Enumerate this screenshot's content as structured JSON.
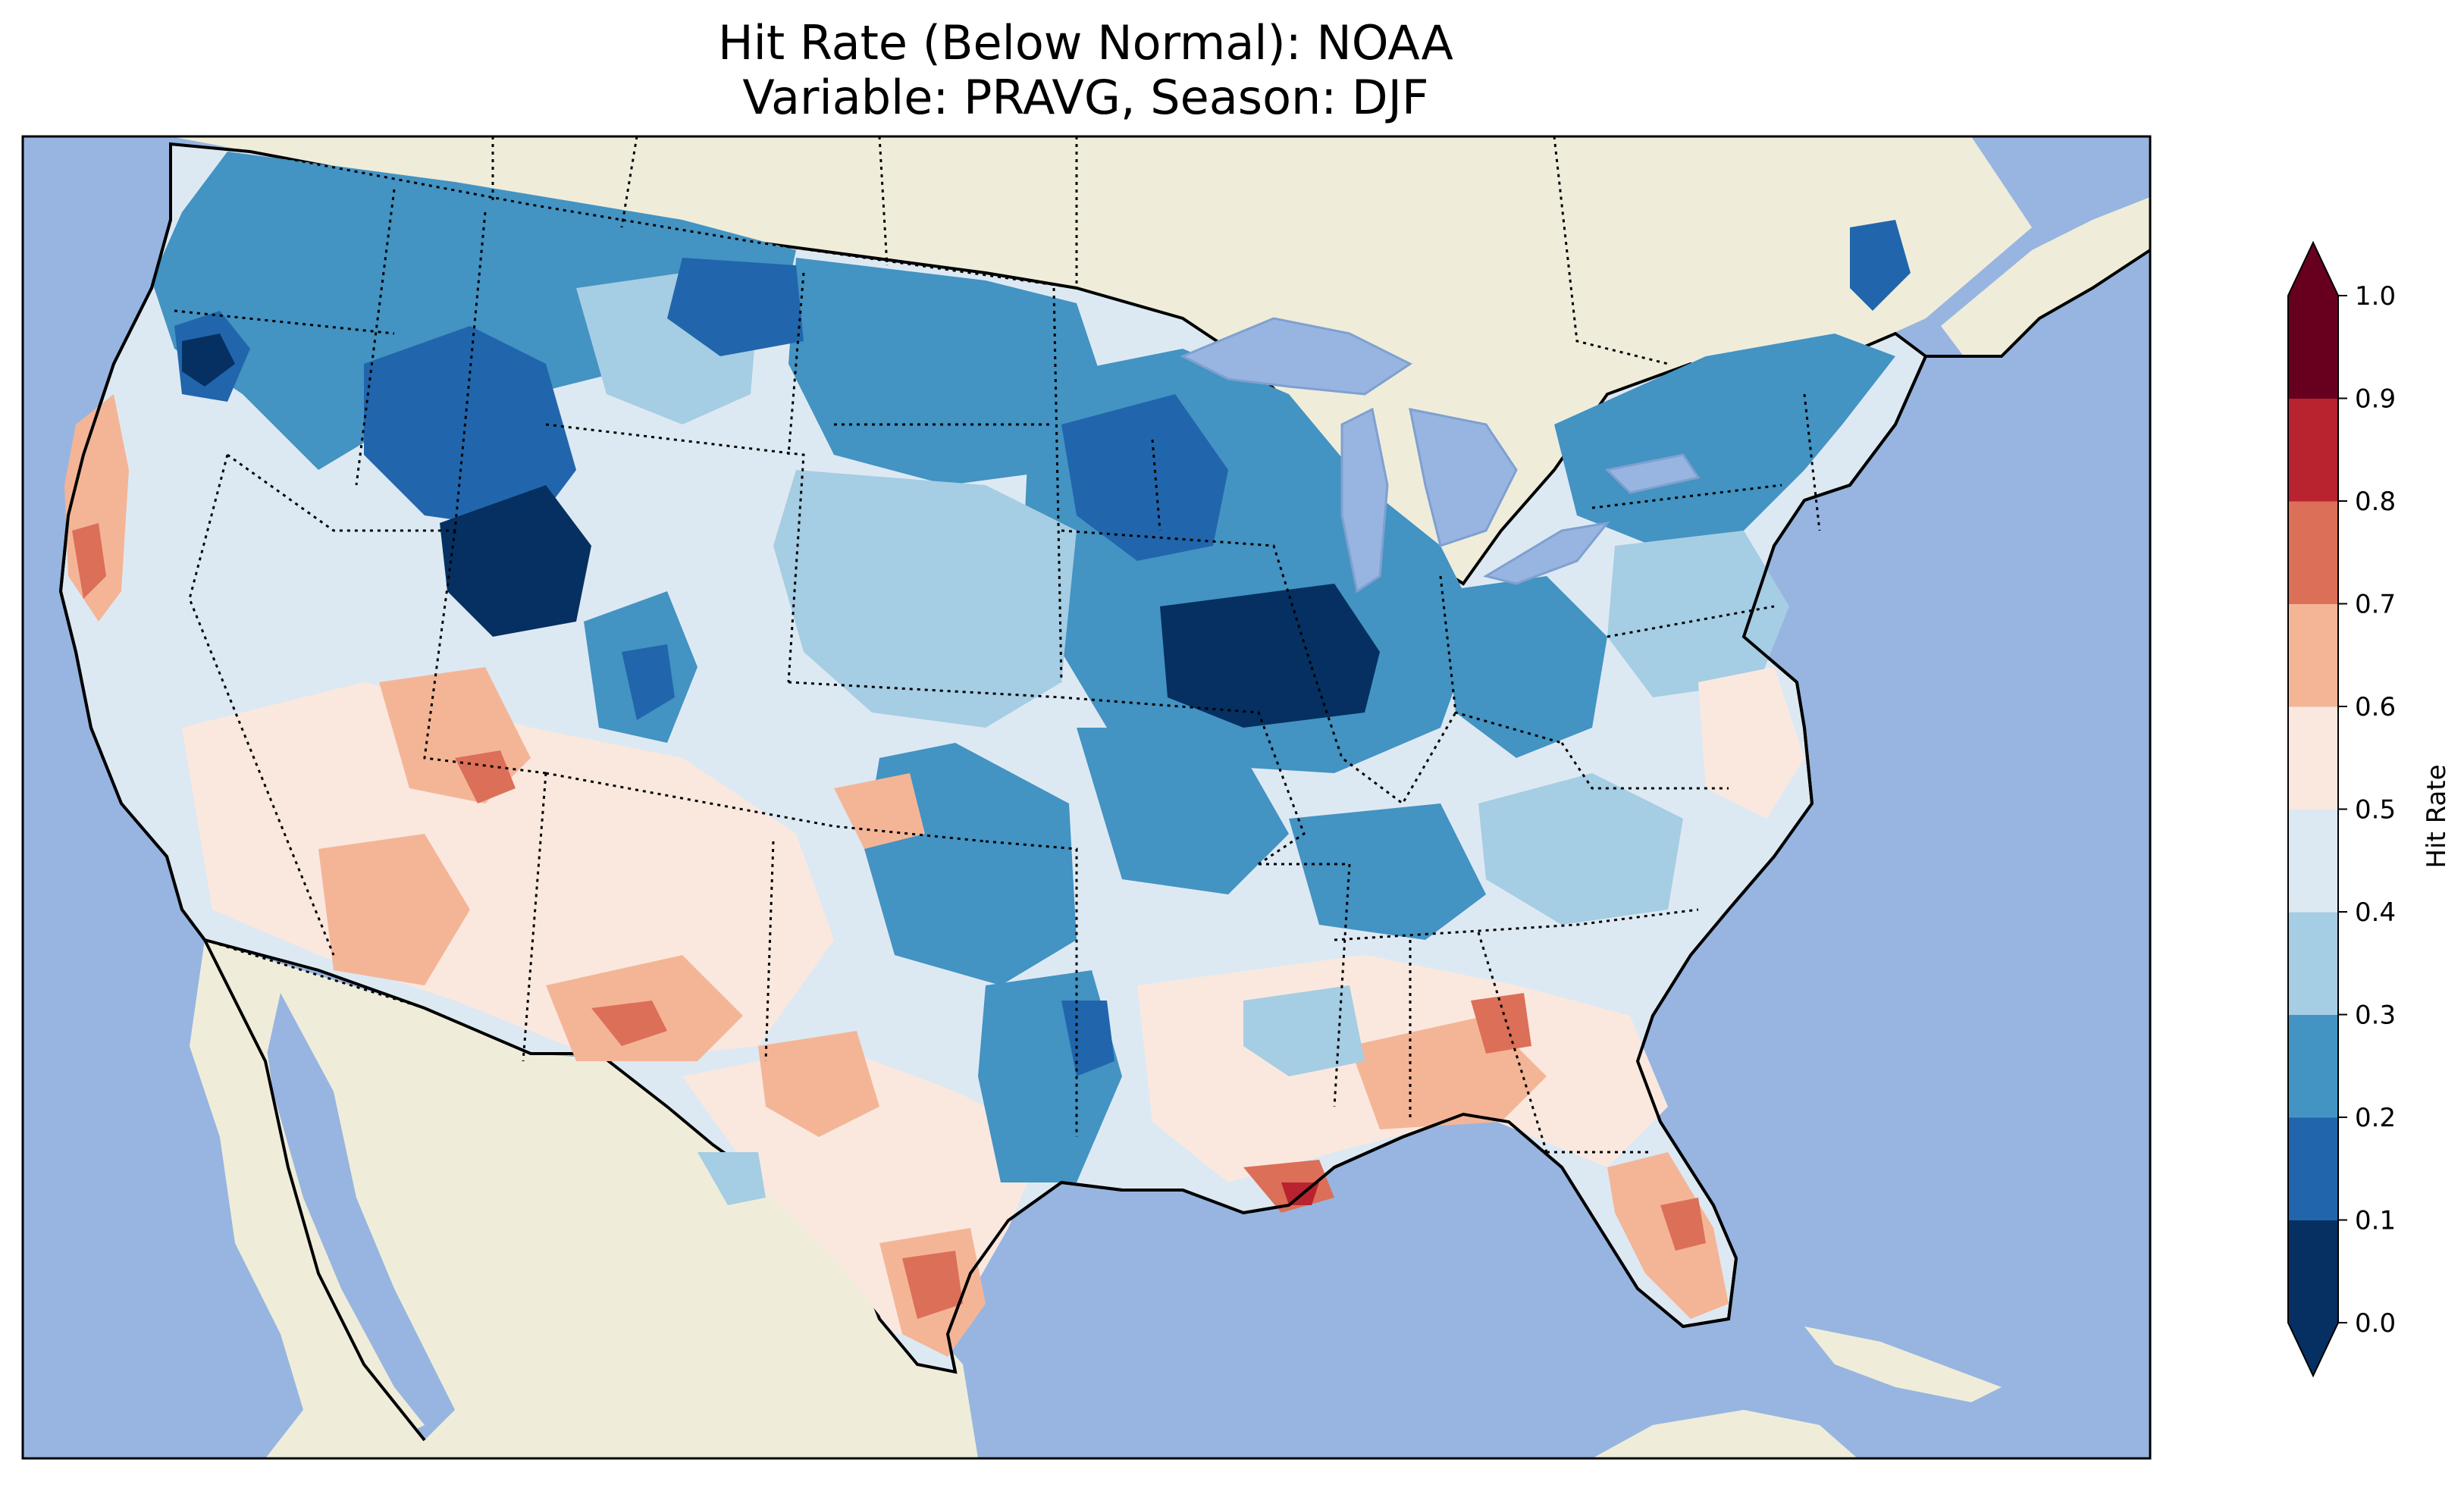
{
  "title": {
    "line1": "Hit Rate (Below Normal): NOAA",
    "line2": "Variable: PRAVG, Season: DJF"
  },
  "colors": {
    "ocean": "#97b5e0",
    "land": "#efedda",
    "frame": "#000000"
  },
  "colorbar": {
    "label": "Hit Rate",
    "extend": "both",
    "ticks": [
      "0.0",
      "0.1",
      "0.2",
      "0.3",
      "0.4",
      "0.5",
      "0.6",
      "0.7",
      "0.8",
      "0.9",
      "1.0"
    ],
    "bins": [
      {
        "range": [
          0.0,
          0.1
        ],
        "color": "#053061"
      },
      {
        "range": [
          0.1,
          0.2
        ],
        "color": "#2166ac"
      },
      {
        "range": [
          0.2,
          0.3
        ],
        "color": "#4393c3"
      },
      {
        "range": [
          0.3,
          0.4
        ],
        "color": "#a5cde3"
      },
      {
        "range": [
          0.4,
          0.5
        ],
        "color": "#dde9f2"
      },
      {
        "range": [
          0.5,
          0.6
        ],
        "color": "#fae8df"
      },
      {
        "range": [
          0.6,
          0.7
        ],
        "color": "#f4b597"
      },
      {
        "range": [
          0.7,
          0.8
        ],
        "color": "#dc6f58"
      },
      {
        "range": [
          0.8,
          0.9
        ],
        "color": "#b8232f"
      },
      {
        "range": [
          0.9,
          1.0
        ],
        "color": "#67001f"
      }
    ],
    "under_color": "#053061",
    "over_color": "#67001f"
  }
}
